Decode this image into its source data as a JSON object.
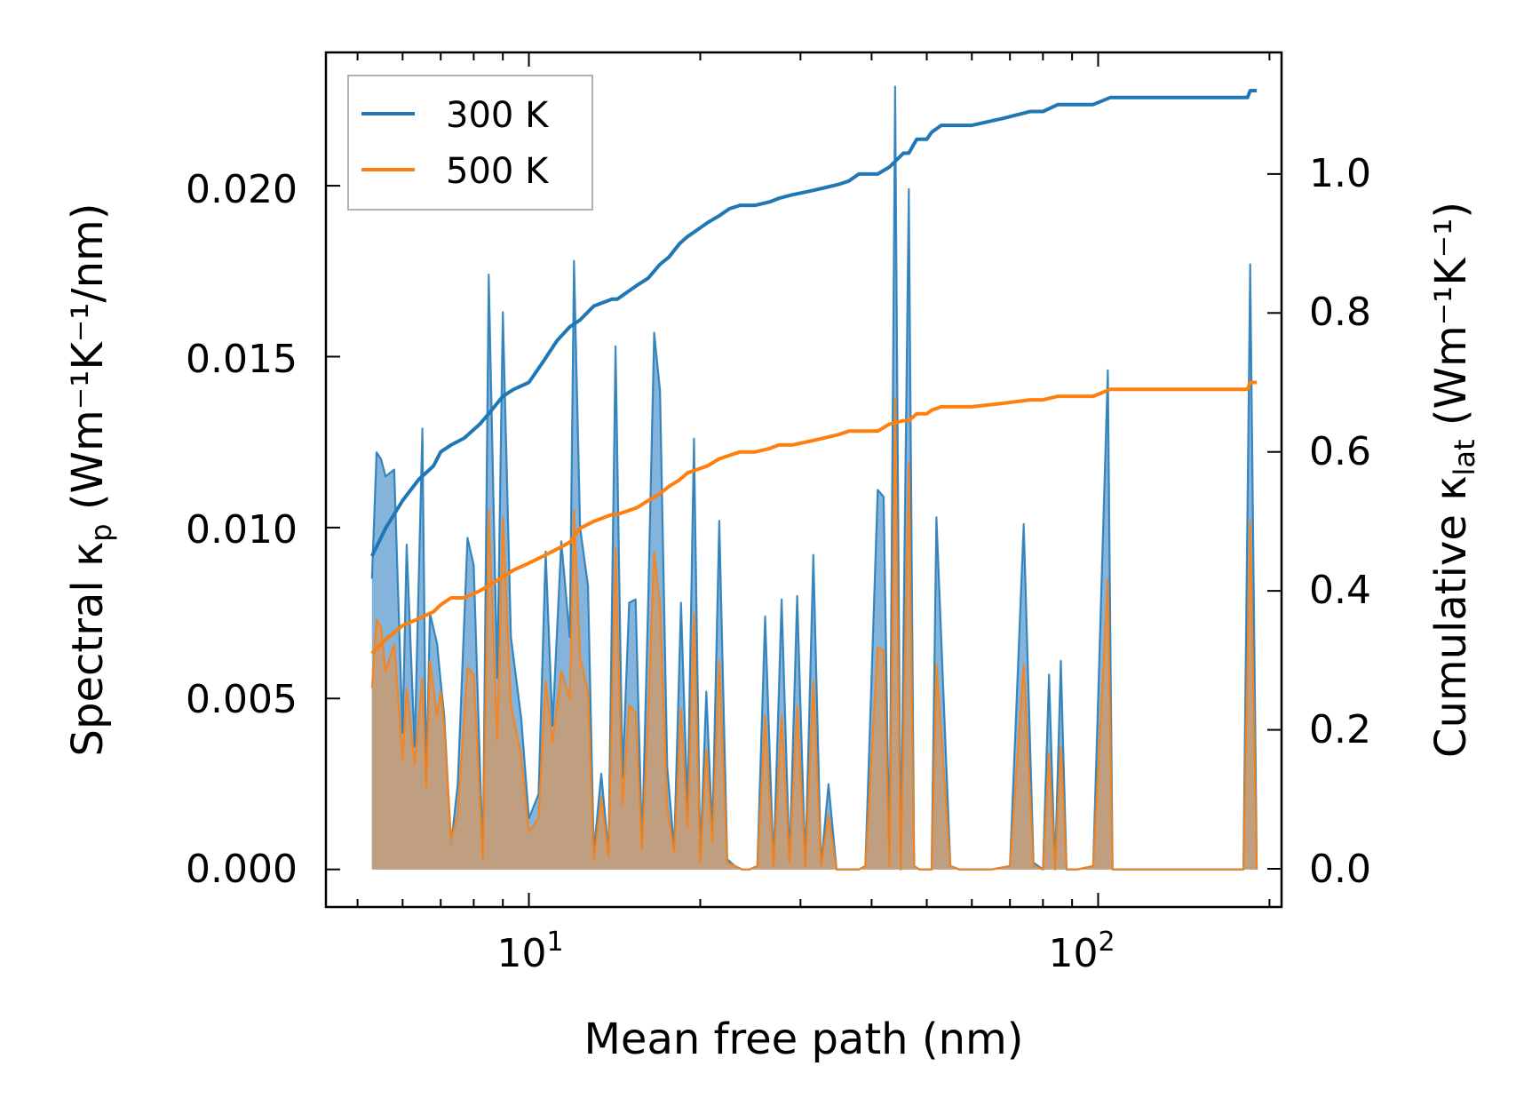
{
  "chart_data": {
    "type": "line",
    "xscale": "log",
    "xlim": [
      4.4,
      210
    ],
    "xlabel": "Mean free path (nm)",
    "x_ticks": [
      {
        "value": 10,
        "base": "10",
        "exp": "1"
      },
      {
        "value": 100,
        "base": "10",
        "exp": "2"
      }
    ],
    "left_axis": {
      "label_main": "Spectral κ",
      "label_sub": "p",
      "label_units": " (Wm⁻¹K⁻¹/nm)",
      "ylim": [
        -0.0011,
        0.0239
      ],
      "ticks": [
        {
          "value": 0,
          "label": "0.000"
        },
        {
          "value": 0.005,
          "label": "0.005"
        },
        {
          "value": 0.01,
          "label": "0.010"
        },
        {
          "value": 0.015,
          "label": "0.015"
        },
        {
          "value": 0.02,
          "label": "0.020"
        }
      ]
    },
    "right_axis": {
      "label_main": "Cumulative κ",
      "label_sub": "lat",
      "label_units": " (Wm⁻¹K⁻¹)",
      "ylim": [
        -0.055,
        1.175
      ],
      "ticks": [
        {
          "value": 0,
          "label": "0.0"
        },
        {
          "value": 0.2,
          "label": "0.2"
        },
        {
          "value": 0.4,
          "label": "0.4"
        },
        {
          "value": 0.6,
          "label": "0.6"
        },
        {
          "value": 0.8,
          "label": "0.8"
        },
        {
          "value": 1.0,
          "label": "1.0"
        }
      ]
    },
    "legend": {
      "position": "top-left",
      "entries": [
        {
          "label": "300 K",
          "color": "#1f77b4"
        },
        {
          "label": "500 K",
          "color": "#ff7f0e"
        }
      ]
    },
    "colors": {
      "series_300": "#1f77b4",
      "series_500": "#ff7f0e",
      "fill_300": "#5b9bd0",
      "fill_500": "#c99b6e"
    },
    "spectral_series": [
      {
        "name": "300 K",
        "x": [
          5.3,
          5.4,
          5.5,
          5.6,
          5.8,
          6.0,
          6.1,
          6.3,
          6.5,
          6.6,
          6.7,
          6.9,
          7.0,
          7.1,
          7.3,
          7.5,
          7.8,
          8.0,
          8.3,
          8.5,
          8.8,
          9.0,
          9.3,
          9.7,
          10.0,
          10.4,
          10.7,
          11.0,
          11.4,
          11.8,
          12.0,
          12.3,
          12.7,
          13.0,
          13.4,
          13.8,
          14.2,
          14.6,
          15.0,
          15.4,
          15.8,
          16.2,
          16.6,
          17.0,
          17.5,
          18.0,
          18.5,
          19.0,
          19.5,
          20.0,
          20.5,
          21.0,
          21.6,
          22.3,
          23.0,
          23.7,
          24.4,
          25.2,
          26.0,
          26.9,
          27.8,
          28.7,
          29.6,
          30.6,
          31.6,
          32.6,
          33.6,
          34.7,
          35.8,
          36.9,
          38.0,
          39.0,
          41.0,
          42.0,
          43.0,
          44.0,
          45.0,
          46.5,
          47.5,
          48.5,
          50.0,
          51.0,
          52.0,
          55.0,
          57.0,
          59.0,
          61.0,
          65.0,
          70.0,
          74.0,
          77.0,
          80.0,
          82.0,
          84.0,
          86.0,
          88.0,
          90.0,
          92.0,
          98.0,
          104.0,
          106.0,
          108.0,
          150.0,
          180.0,
          185.0,
          190.0
        ],
        "values": [
          0.0085,
          0.0122,
          0.012,
          0.0115,
          0.0117,
          0.004,
          0.0095,
          0.0036,
          0.0129,
          0.0025,
          0.0075,
          0.0066,
          0.0055,
          0.0045,
          0.0007,
          0.0025,
          0.0097,
          0.0089,
          0.0003,
          0.0174,
          0.0056,
          0.0163,
          0.0068,
          0.0044,
          0.0015,
          0.0022,
          0.0093,
          0.0042,
          0.0096,
          0.0068,
          0.0178,
          0.01,
          0.0083,
          0.0005,
          0.0028,
          0.0005,
          0.0153,
          0.0027,
          0.0078,
          0.0079,
          0.0007,
          0.0078,
          0.0157,
          0.014,
          0.003,
          0.0006,
          0.0078,
          0.0017,
          0.0126,
          0.0003,
          0.0052,
          0.0011,
          0.0102,
          0.0003,
          0.0001,
          0.0,
          0.0,
          0.0001,
          0.0074,
          0.0001,
          0.0079,
          0.0002,
          0.008,
          0.0001,
          0.0092,
          0.0001,
          0.0025,
          0.0,
          0.0,
          0.0,
          0.0,
          0.0001,
          0.0111,
          0.0109,
          0.0002,
          0.0229,
          0.0,
          0.0199,
          0.0001,
          0.0,
          0.0,
          0.0,
          0.0103,
          0.0001,
          0.0,
          0.0,
          0.0,
          0.0,
          0.0001,
          0.0101,
          0.0002,
          0.0,
          0.0057,
          0.0,
          0.0061,
          0.0,
          0.0,
          0.0,
          0.0001,
          0.0146,
          0.0,
          0.0,
          0.0,
          0.0,
          0.0177,
          0.0
        ]
      },
      {
        "name": "500 K",
        "x": [
          5.3,
          5.4,
          5.5,
          5.6,
          5.8,
          6.0,
          6.1,
          6.3,
          6.5,
          6.6,
          6.7,
          6.9,
          7.0,
          7.1,
          7.3,
          7.5,
          7.8,
          8.0,
          8.3,
          8.5,
          8.8,
          9.0,
          9.3,
          9.7,
          10.0,
          10.4,
          10.7,
          11.0,
          11.4,
          11.8,
          12.0,
          12.3,
          12.7,
          13.0,
          13.4,
          13.8,
          14.2,
          14.6,
          15.0,
          15.4,
          15.8,
          16.2,
          16.6,
          17.0,
          17.5,
          18.0,
          18.5,
          19.0,
          19.5,
          20.0,
          20.5,
          21.0,
          21.6,
          22.3,
          23.0,
          23.7,
          24.4,
          25.2,
          26.0,
          26.9,
          27.8,
          28.7,
          29.6,
          30.6,
          31.6,
          32.6,
          33.6,
          34.7,
          35.8,
          36.9,
          38.0,
          39.0,
          41.0,
          42.0,
          43.0,
          44.0,
          45.0,
          46.5,
          47.5,
          48.5,
          50.0,
          51.0,
          52.0,
          55.0,
          57.0,
          59.0,
          61.0,
          65.0,
          70.0,
          74.0,
          77.0,
          80.0,
          82.0,
          84.0,
          86.0,
          88.0,
          90.0,
          92.0,
          98.0,
          104.0,
          106.0,
          108.0,
          150.0,
          180.0,
          185.0,
          190.0
        ],
        "values": [
          0.0053,
          0.0073,
          0.0071,
          0.0058,
          0.0066,
          0.0032,
          0.0053,
          0.0031,
          0.0056,
          0.0024,
          0.0061,
          0.0045,
          0.0052,
          0.0042,
          0.0009,
          0.0016,
          0.0059,
          0.0057,
          0.0003,
          0.0105,
          0.0038,
          0.0103,
          0.0048,
          0.0033,
          0.0011,
          0.0015,
          0.0055,
          0.0037,
          0.0058,
          0.005,
          0.0105,
          0.0062,
          0.0052,
          0.0003,
          0.0021,
          0.0004,
          0.0094,
          0.0019,
          0.0048,
          0.0046,
          0.0006,
          0.0045,
          0.0093,
          0.0077,
          0.0018,
          0.0005,
          0.0047,
          0.0012,
          0.0075,
          0.0002,
          0.0035,
          0.0008,
          0.0061,
          0.0002,
          0.0001,
          0.0,
          0.0,
          0.0001,
          0.0045,
          0.0001,
          0.0045,
          0.0002,
          0.0048,
          0.0001,
          0.0055,
          0.0001,
          0.0016,
          0.0,
          0.0,
          0.0,
          0.0,
          0.0001,
          0.0065,
          0.0064,
          0.0001,
          0.0138,
          0.0,
          0.0119,
          0.0001,
          0.0,
          0.0,
          0.0,
          0.006,
          0.0001,
          0.0,
          0.0,
          0.0,
          0.0,
          0.0001,
          0.006,
          0.0001,
          0.0,
          0.0034,
          0.0,
          0.0036,
          0.0,
          0.0,
          0.0,
          0.0001,
          0.0085,
          0.0,
          0.0,
          0.0,
          0.0,
          0.0102,
          0.0
        ]
      }
    ],
    "cumulative_series": [
      {
        "name": "300 K",
        "x": [
          5.3,
          5.6,
          6.0,
          6.4,
          6.8,
          7.0,
          7.3,
          7.7,
          8.2,
          8.6,
          9.0,
          9.4,
          10.0,
          10.6,
          11.2,
          11.8,
          12.3,
          13.0,
          14.0,
          14.3,
          15.5,
          16.2,
          17.0,
          17.6,
          18.4,
          19.0,
          19.8,
          20.6,
          21.6,
          22.5,
          23.5,
          25.0,
          26.5,
          27.5,
          29.0,
          31.0,
          33.0,
          35.0,
          36.5,
          38.0,
          41.0,
          43.0,
          45.5,
          46.5,
          48.0,
          50.0,
          51.0,
          53.0,
          58.0,
          60.0,
          68.0,
          76.0,
          80.0,
          85.0,
          90.0,
          98.0,
          105.0,
          110.0,
          150.0,
          183.0,
          185.0,
          190.0
        ],
        "values": [
          0.45,
          0.49,
          0.53,
          0.56,
          0.58,
          0.6,
          0.61,
          0.62,
          0.64,
          0.66,
          0.68,
          0.69,
          0.7,
          0.73,
          0.76,
          0.78,
          0.79,
          0.81,
          0.82,
          0.82,
          0.84,
          0.85,
          0.87,
          0.88,
          0.9,
          0.91,
          0.92,
          0.93,
          0.94,
          0.95,
          0.955,
          0.955,
          0.96,
          0.965,
          0.97,
          0.975,
          0.98,
          0.985,
          0.99,
          1.0,
          1.0,
          1.01,
          1.03,
          1.03,
          1.05,
          1.05,
          1.06,
          1.07,
          1.07,
          1.07,
          1.08,
          1.09,
          1.09,
          1.1,
          1.1,
          1.1,
          1.11,
          1.11,
          1.11,
          1.11,
          1.12,
          1.12
        ]
      },
      {
        "name": "500 K",
        "x": [
          5.3,
          5.6,
          6.0,
          6.4,
          6.8,
          7.0,
          7.3,
          7.7,
          8.2,
          8.6,
          9.0,
          9.4,
          10.0,
          10.6,
          11.2,
          11.8,
          12.3,
          13.0,
          14.0,
          14.3,
          15.5,
          16.2,
          17.0,
          17.6,
          18.4,
          19.0,
          19.8,
          20.6,
          21.6,
          22.5,
          23.5,
          25.0,
          26.5,
          27.5,
          29.0,
          31.0,
          33.0,
          35.0,
          36.5,
          38.0,
          41.0,
          43.0,
          45.5,
          46.5,
          48.0,
          50.0,
          51.0,
          53.0,
          58.0,
          60.0,
          68.0,
          76.0,
          80.0,
          85.0,
          90.0,
          98.0,
          105.0,
          110.0,
          150.0,
          183.0,
          185.0,
          190.0
        ],
        "values": [
          0.31,
          0.33,
          0.35,
          0.36,
          0.37,
          0.38,
          0.39,
          0.39,
          0.4,
          0.41,
          0.42,
          0.43,
          0.44,
          0.45,
          0.46,
          0.47,
          0.49,
          0.5,
          0.51,
          0.51,
          0.52,
          0.53,
          0.54,
          0.55,
          0.56,
          0.57,
          0.575,
          0.58,
          0.59,
          0.595,
          0.6,
          0.6,
          0.605,
          0.61,
          0.61,
          0.615,
          0.62,
          0.625,
          0.63,
          0.63,
          0.63,
          0.64,
          0.645,
          0.645,
          0.655,
          0.655,
          0.66,
          0.665,
          0.665,
          0.665,
          0.67,
          0.675,
          0.675,
          0.68,
          0.68,
          0.68,
          0.69,
          0.69,
          0.69,
          0.69,
          0.7,
          0.7
        ]
      }
    ]
  }
}
